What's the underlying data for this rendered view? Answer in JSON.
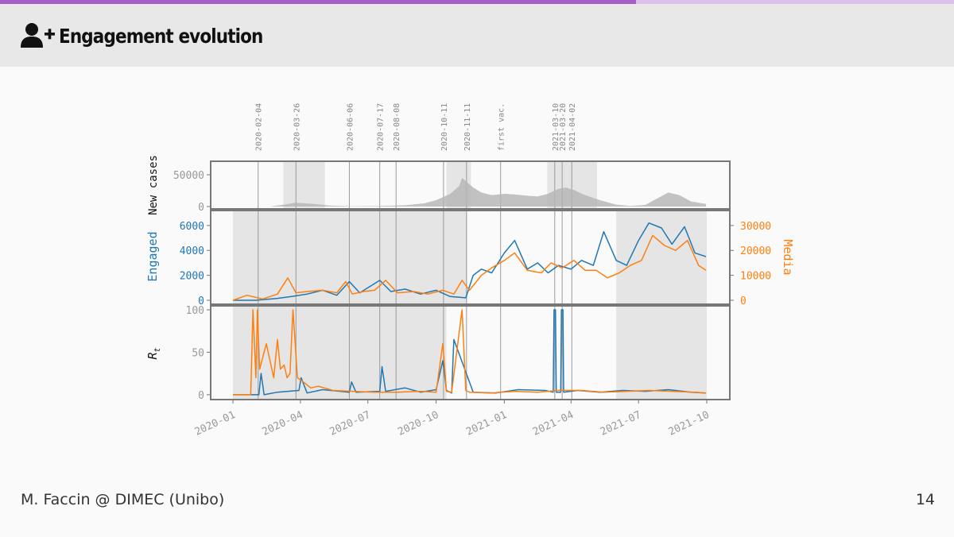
{
  "slide": {
    "title": "Engagement evolution",
    "title_icon": "user-plus-icon",
    "progress_fraction": 0.667,
    "footer_author": "M. Faccin @ DIMEC (Unibo)",
    "page_number": "14"
  },
  "colors": {
    "accent": "#a45fc6",
    "accent_light": "#dcc2ea",
    "header_bg": "#e8e8e8",
    "engaged": "#1f77b4",
    "media": "#ff7f0e",
    "new_cases": "#b4b4b4",
    "shade": "#dddddd",
    "event_line": "#9a9a9a",
    "axis": "#777777"
  },
  "chart_data": {
    "type": "line",
    "x_range": [
      "2020-01-01",
      "2021-10-01"
    ],
    "x_ticks": [
      "2020-01",
      "2020-04",
      "2020-07",
      "2020-10",
      "2021-01",
      "2021-04",
      "2021-07",
      "2021-10"
    ],
    "events": [
      {
        "date": "2020-02-04",
        "label": "2020-02-04"
      },
      {
        "date": "2020-03-26",
        "label": "2020-03-26"
      },
      {
        "date": "2020-06-06",
        "label": "2020-06-06"
      },
      {
        "date": "2020-07-17",
        "label": "2020-07-17"
      },
      {
        "date": "2020-08-08",
        "label": "2020-08-08"
      },
      {
        "date": "2020-10-11",
        "label": "2020-10-11"
      },
      {
        "date": "2020-11-11",
        "label": "2020-11-11"
      },
      {
        "date": "2020-12-27",
        "label": "first vac."
      },
      {
        "date": "2021-03-10",
        "label": "2021-03-10"
      },
      {
        "date": "2021-03-20",
        "label": "2021-03-20"
      },
      {
        "date": "2021-04-02",
        "label": "2021-04-02"
      }
    ],
    "panels": [
      {
        "id": "new_cases",
        "ylabel_parts": [
          "New cases"
        ],
        "yticks": [
          0,
          50000
        ],
        "ylim": [
          0,
          60000
        ],
        "shaded": [
          [
            "2020-03-09",
            "2020-05-04"
          ],
          [
            "2020-10-15",
            "2020-11-17"
          ],
          [
            "2021-02-28",
            "2021-05-06"
          ]
        ],
        "series": [
          {
            "type": "area",
            "color_key": "new_cases",
            "x": [
              "2020-01-01",
              "2020-02-20",
              "2020-03-10",
              "2020-03-25",
              "2020-04-15",
              "2020-05-10",
              "2020-06-10",
              "2020-07-15",
              "2020-08-20",
              "2020-09-15",
              "2020-10-01",
              "2020-10-20",
              "2020-11-01",
              "2020-11-05",
              "2020-11-12",
              "2020-11-20",
              "2020-12-01",
              "2020-12-15",
              "2021-01-01",
              "2021-01-15",
              "2021-02-01",
              "2021-02-15",
              "2021-03-01",
              "2021-03-15",
              "2021-03-25",
              "2021-04-05",
              "2021-04-20",
              "2021-05-10",
              "2021-06-01",
              "2021-06-20",
              "2021-07-10",
              "2021-07-25",
              "2021-08-10",
              "2021-08-25",
              "2021-09-10",
              "2021-09-30"
            ],
            "values": [
              0,
              0,
              3000,
              6000,
              4500,
              1500,
              500,
              800,
              2000,
              5000,
              10000,
              20000,
              32000,
              45000,
              38000,
              30000,
              22000,
              18000,
              20000,
              19000,
              17000,
              16000,
              20000,
              28000,
              30000,
              26000,
              18000,
              10000,
              3000,
              1000,
              2500,
              12000,
              22000,
              18000,
              8000,
              4000
            ]
          }
        ]
      },
      {
        "id": "engaged_media",
        "ylabel_parts": [
          "Engaged",
          "Media"
        ],
        "yticks": [
          0,
          2000,
          4000,
          6000
        ],
        "ylim": [
          0,
          6500
        ],
        "y2ticks": [
          0,
          10000,
          20000,
          30000
        ],
        "y2lim": [
          0,
          32500
        ],
        "shaded": [
          [
            "2020-01-01",
            "2020-11-12"
          ],
          [
            "2021-06-01",
            "2021-10-01"
          ]
        ],
        "series": [
          {
            "name": "Engaged",
            "color_key": "engaged",
            "axis": "left",
            "x": [
              "2020-01-01",
              "2020-02-01",
              "2020-03-01",
              "2020-03-20",
              "2020-04-10",
              "2020-05-01",
              "2020-05-20",
              "2020-06-06",
              "2020-06-20",
              "2020-07-17",
              "2020-08-01",
              "2020-08-20",
              "2020-09-10",
              "2020-10-01",
              "2020-10-20",
              "2020-11-10",
              "2020-11-20",
              "2020-12-01",
              "2020-12-15",
              "2021-01-01",
              "2021-01-15",
              "2021-02-01",
              "2021-02-15",
              "2021-03-01",
              "2021-03-15",
              "2021-04-01",
              "2021-04-15",
              "2021-05-01",
              "2021-05-15",
              "2021-06-01",
              "2021-06-15",
              "2021-07-01",
              "2021-07-15",
              "2021-08-01",
              "2021-08-15",
              "2021-09-01",
              "2021-09-15",
              "2021-09-30"
            ],
            "values": [
              0,
              0,
              150,
              300,
              500,
              800,
              400,
              1500,
              600,
              1600,
              700,
              900,
              500,
              800,
              300,
              200,
              2000,
              2500,
              2200,
              3800,
              4800,
              2500,
              3000,
              2200,
              2800,
              2500,
              3200,
              2800,
              5500,
              3200,
              2800,
              4800,
              6200,
              5800,
              4500,
              5900,
              3800,
              3500
            ]
          },
          {
            "name": "Media",
            "color_key": "media",
            "axis": "right",
            "x": [
              "2020-01-01",
              "2020-01-20",
              "2020-02-10",
              "2020-03-01",
              "2020-03-15",
              "2020-03-26",
              "2020-04-10",
              "2020-05-01",
              "2020-05-20",
              "2020-06-01",
              "2020-06-10",
              "2020-06-25",
              "2020-07-10",
              "2020-07-25",
              "2020-08-10",
              "2020-09-01",
              "2020-09-20",
              "2020-10-10",
              "2020-10-25",
              "2020-11-05",
              "2020-11-15",
              "2020-12-01",
              "2020-12-15",
              "2021-01-01",
              "2021-01-15",
              "2021-02-01",
              "2021-02-20",
              "2021-03-05",
              "2021-03-20",
              "2021-04-05",
              "2021-04-20",
              "2021-05-05",
              "2021-05-20",
              "2021-06-05",
              "2021-06-20",
              "2021-07-05",
              "2021-07-20",
              "2021-08-05",
              "2021-08-20",
              "2021-09-05",
              "2021-09-20",
              "2021-09-30"
            ],
            "values": [
              0,
              2000,
              500,
              2500,
              9000,
              3000,
              3500,
              4000,
              3000,
              7500,
              2500,
              3500,
              4000,
              8000,
              3000,
              3500,
              2500,
              4000,
              2500,
              8000,
              4000,
              10000,
              13000,
              16000,
              19000,
              12000,
              11000,
              15000,
              13000,
              16000,
              12000,
              12000,
              9000,
              11000,
              14000,
              16000,
              26000,
              22000,
              20000,
              24000,
              14000,
              12000
            ]
          }
        ]
      },
      {
        "id": "rt",
        "ylabel_parts": [
          "R",
          "t"
        ],
        "yticks": [
          0,
          50,
          100
        ],
        "ylim": [
          -2,
          100
        ],
        "shaded": [
          [
            "2020-01-01",
            "2020-10-15"
          ],
          [
            "2021-06-01",
            "2021-10-01"
          ]
        ],
        "series": [
          {
            "name": "Engaged",
            "color_key": "engaged",
            "x": [
              "2020-01-01",
              "2020-02-05",
              "2020-02-08",
              "2020-02-12",
              "2020-03-01",
              "2020-03-30",
              "2020-04-02",
              "2020-04-10",
              "2020-05-01",
              "2020-06-06",
              "2020-06-09",
              "2020-06-15",
              "2020-07-17",
              "2020-07-20",
              "2020-07-25",
              "2020-08-20",
              "2020-09-10",
              "2020-10-01",
              "2020-10-10",
              "2020-10-15",
              "2020-10-22",
              "2020-10-25",
              "2020-11-20",
              "2020-12-20",
              "2021-01-20",
              "2021-02-25",
              "2021-03-08",
              "2021-03-09",
              "2021-03-11",
              "2021-03-12",
              "2021-03-18",
              "2021-03-19",
              "2021-03-21",
              "2021-03-22",
              "2021-04-10",
              "2021-05-10",
              "2021-06-10",
              "2021-07-10",
              "2021-08-10",
              "2021-09-10",
              "2021-09-30"
            ],
            "values": [
              0,
              0,
              25,
              0,
              3,
              5,
              20,
              2,
              6,
              3,
              15,
              3,
              4,
              33,
              4,
              8,
              3,
              6,
              40,
              5,
              2,
              65,
              3,
              2,
              6,
              5,
              3,
              100,
              100,
              3,
              3,
              100,
              100,
              3,
              5,
              3,
              5,
              4,
              6,
              3,
              2
            ]
          },
          {
            "name": "Media",
            "color_key": "media",
            "x": [
              "2020-01-01",
              "2020-01-25",
              "2020-01-28",
              "2020-02-01",
              "2020-02-03",
              "2020-02-06",
              "2020-02-15",
              "2020-02-25",
              "2020-03-01",
              "2020-03-05",
              "2020-03-10",
              "2020-03-14",
              "2020-03-18",
              "2020-03-22",
              "2020-03-28",
              "2020-04-05",
              "2020-04-15",
              "2020-04-25",
              "2020-05-15",
              "2020-06-10",
              "2020-07-10",
              "2020-08-10",
              "2020-09-10",
              "2020-10-01",
              "2020-10-10",
              "2020-10-15",
              "2020-10-22",
              "2020-11-05",
              "2020-11-10",
              "2020-11-15",
              "2020-12-15",
              "2021-01-15",
              "2021-02-15",
              "2021-03-15",
              "2021-04-15",
              "2021-05-15",
              "2021-06-15",
              "2021-07-15",
              "2021-08-15",
              "2021-09-15",
              "2021-09-30"
            ],
            "values": [
              0,
              0,
              100,
              20,
              100,
              30,
              60,
              20,
              65,
              30,
              35,
              20,
              25,
              100,
              20,
              15,
              8,
              10,
              5,
              4,
              3,
              3,
              4,
              3,
              60,
              4,
              3,
              100,
              5,
              3,
              2,
              4,
              3,
              5,
              5,
              3,
              4,
              5,
              4,
              3,
              2
            ]
          }
        ]
      }
    ]
  }
}
